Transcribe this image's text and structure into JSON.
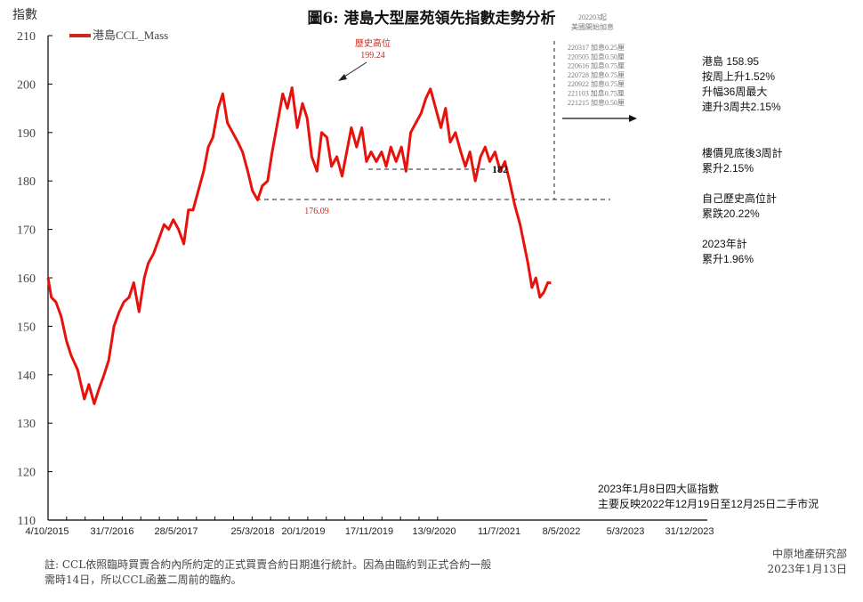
{
  "title": "圖6: 港島大型屋苑領先指數走勢分析",
  "y_axis_label": "指數",
  "legend": {
    "label": "港島CCL_Mass",
    "color": "#e8120c"
  },
  "annotations": {
    "historic_high_label": "歷史高位",
    "historic_high_value": "199.24",
    "low_value": "176.09",
    "support_level": "182"
  },
  "rate_hikes": {
    "header_line1": "202203起",
    "header_line2": "美國開始加息",
    "items": [
      "220317 加息0.25厘",
      "220505 加息0.50厘",
      "220616 加息0.75厘",
      "220728 加息0.75厘",
      "220922 加息0.75厘",
      "221103 加息0.75厘",
      "221215 加息0.50厘"
    ]
  },
  "side_notes": {
    "block1": [
      "港島 158.95",
      "按周上升1.52%",
      "升幅36周最大",
      "連升3周共2.15%"
    ],
    "block2": [
      "樓價見底後3周計",
      "累升2.15%"
    ],
    "block3": [
      "自己歷史高位計",
      "累跌20.22%"
    ],
    "block4": [
      "2023年計",
      "累升1.96%"
    ]
  },
  "bottom_note": [
    "2023年1月8日四大區指數",
    "主要反映2022年12月19日至12月25日二手市況"
  ],
  "footnote": [
    "註: CCL依照臨時買賣合約內所約定的正式買賣合約日期進行統計。因為由臨約到正式合約一般",
    "需時14日，所以CCL函蓋二周前的臨約。"
  ],
  "source": [
    "中原地產研究部",
    "2023年1月13日"
  ],
  "chart_data": {
    "type": "line",
    "title": "圖6: 港島大型屋苑領先指數走勢分析",
    "xlabel": "",
    "ylabel": "指數",
    "ylim": [
      110,
      210
    ],
    "yticks": [
      110,
      120,
      130,
      140,
      150,
      160,
      170,
      180,
      190,
      200,
      210
    ],
    "xticks": [
      "4/10/2015",
      "31/7/2016",
      "28/5/2017",
      "25/3/2018",
      "20/1/2019",
      "17/11/2019",
      "13/9/2020",
      "11/7/2021",
      "8/5/2022",
      "5/3/2023",
      "31/12/2023"
    ],
    "grid": false,
    "legend_position": "top-left",
    "series": [
      {
        "name": "港島CCL_Mass",
        "color": "#e8120c",
        "x_frac": [
          0,
          0.005,
          0.012,
          0.02,
          0.028,
          0.035,
          0.045,
          0.055,
          0.062,
          0.07,
          0.077,
          0.085,
          0.092,
          0.1,
          0.108,
          0.115,
          0.123,
          0.13,
          0.138,
          0.146,
          0.152,
          0.16,
          0.168,
          0.176,
          0.183,
          0.19,
          0.198,
          0.206,
          0.213,
          0.22,
          0.228,
          0.236,
          0.243,
          0.25,
          0.258,
          0.265,
          0.272,
          0.28,
          0.288,
          0.295,
          0.303,
          0.31,
          0.318,
          0.325,
          0.333,
          0.34,
          0.348,
          0.356,
          0.363,
          0.37,
          0.378,
          0.386,
          0.393,
          0.4,
          0.408,
          0.415,
          0.423,
          0.43,
          0.438,
          0.446,
          0.453,
          0.46,
          0.468,
          0.476,
          0.483,
          0.49,
          0.498,
          0.506,
          0.513,
          0.52,
          0.528,
          0.536,
          0.543,
          0.55,
          0.558,
          0.566,
          0.573,
          0.58,
          0.588,
          0.596,
          0.603,
          0.61,
          0.618,
          0.626,
          0.633,
          0.64,
          0.648,
          0.656,
          0.663,
          0.67,
          0.678,
          0.686,
          0.693,
          0.7,
          0.708,
          0.716,
          0.722,
          0.728,
          0.734,
          0.74,
          0.746,
          0.752,
          0.758,
          0.763,
          0.768,
          0.772,
          0.776,
          0.781,
          0.785
        ],
        "values": [
          160,
          156,
          155,
          152,
          147,
          144,
          141,
          135,
          138,
          134,
          137,
          140,
          143,
          150,
          153,
          155,
          156,
          159,
          153,
          160,
          163,
          165,
          168,
          171,
          170,
          172,
          170,
          167,
          174,
          174,
          178,
          182,
          187,
          189,
          195,
          198,
          192,
          190,
          188,
          186,
          182,
          178,
          176.09,
          179,
          180,
          186,
          192,
          198,
          195,
          199.24,
          191,
          196,
          193,
          185,
          182,
          190,
          189,
          183,
          185,
          181,
          186,
          191,
          187,
          191,
          184,
          186,
          184,
          186,
          183,
          187,
          184,
          187,
          182,
          190,
          192,
          194,
          197,
          199,
          195,
          191,
          195,
          188,
          190,
          186,
          183,
          186,
          180,
          185,
          187,
          184,
          186,
          182,
          184,
          180,
          175,
          171,
          167,
          163,
          158,
          160,
          156,
          157,
          159,
          158.95,
          158.95,
          158.95,
          158.95,
          158.95,
          158.95
        ]
      }
    ],
    "reference_lines": [
      {
        "value": 176.09,
        "label": "176.09",
        "style": "dashed"
      },
      {
        "value": 182,
        "label": "182",
        "style": "dashed"
      },
      {
        "x": "2022-03",
        "label": "202203起 美國開始加息",
        "style": "dashed-vertical"
      }
    ],
    "annotations": [
      {
        "text": "歷史高位 199.24",
        "x": "2019-05",
        "y": 199.24
      },
      {
        "text": "176.09",
        "x": "2018-12",
        "y": 176.09
      }
    ]
  }
}
